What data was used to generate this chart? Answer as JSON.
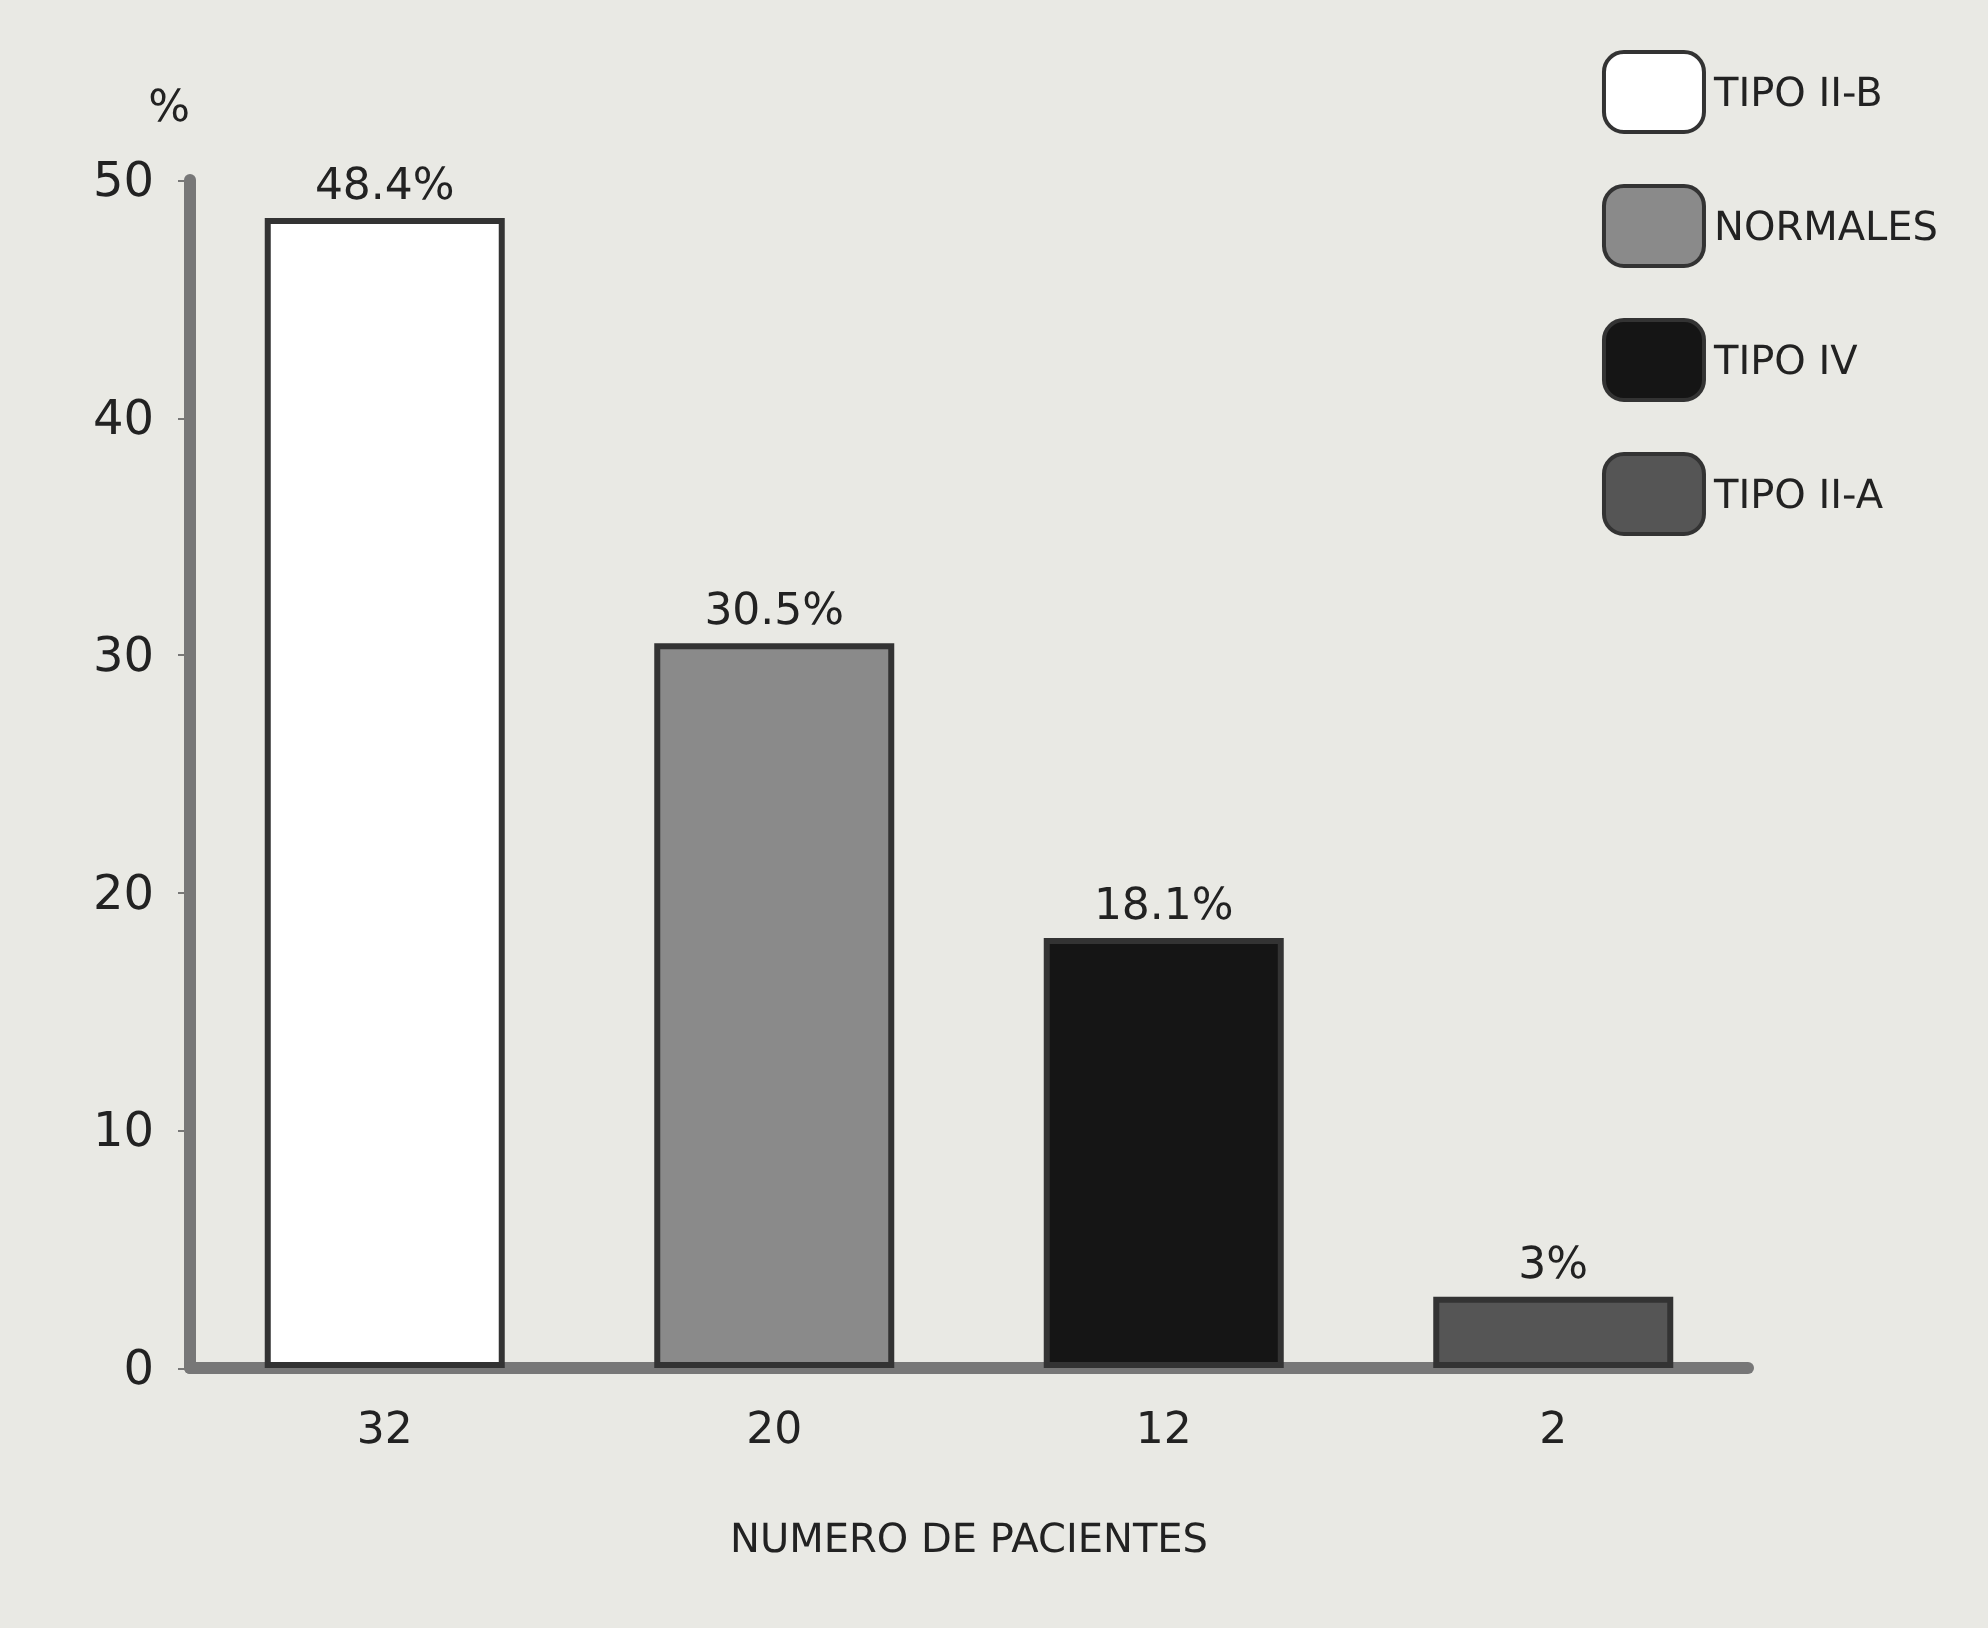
{
  "chart_data": {
    "type": "bar",
    "ylabel": "%",
    "xlabel": "NUMERO DE PACIENTES",
    "categories": [
      "32",
      "20",
      "12",
      "2"
    ],
    "stacked": true,
    "legend": "top right",
    "grid": false,
    "ylim": [
      0,
      50
    ],
    "yticks": [
      0,
      10,
      20,
      30,
      40,
      50
    ],
    "series": [
      {
        "name": "TIPO II-B",
        "color": "#ffffff",
        "values": [
          48.4,
          null,
          null,
          null
        ],
        "value_labels": [
          "48.4%",
          null,
          null,
          null
        ]
      },
      {
        "name": "NORMALES",
        "color": "#8a8a8a",
        "values": [
          null,
          30.5,
          null,
          null
        ],
        "value_labels": [
          null,
          "30.5%",
          null,
          null
        ]
      },
      {
        "name": "TIPO IV",
        "color": "#151515",
        "values": [
          null,
          null,
          18.1,
          null
        ],
        "value_labels": [
          null,
          null,
          "18.1%",
          null
        ]
      },
      {
        "name": "TIPO II-A",
        "color": "#555555",
        "values": [
          null,
          null,
          null,
          3
        ],
        "value_labels": [
          null,
          null,
          null,
          "3%"
        ]
      }
    ]
  }
}
